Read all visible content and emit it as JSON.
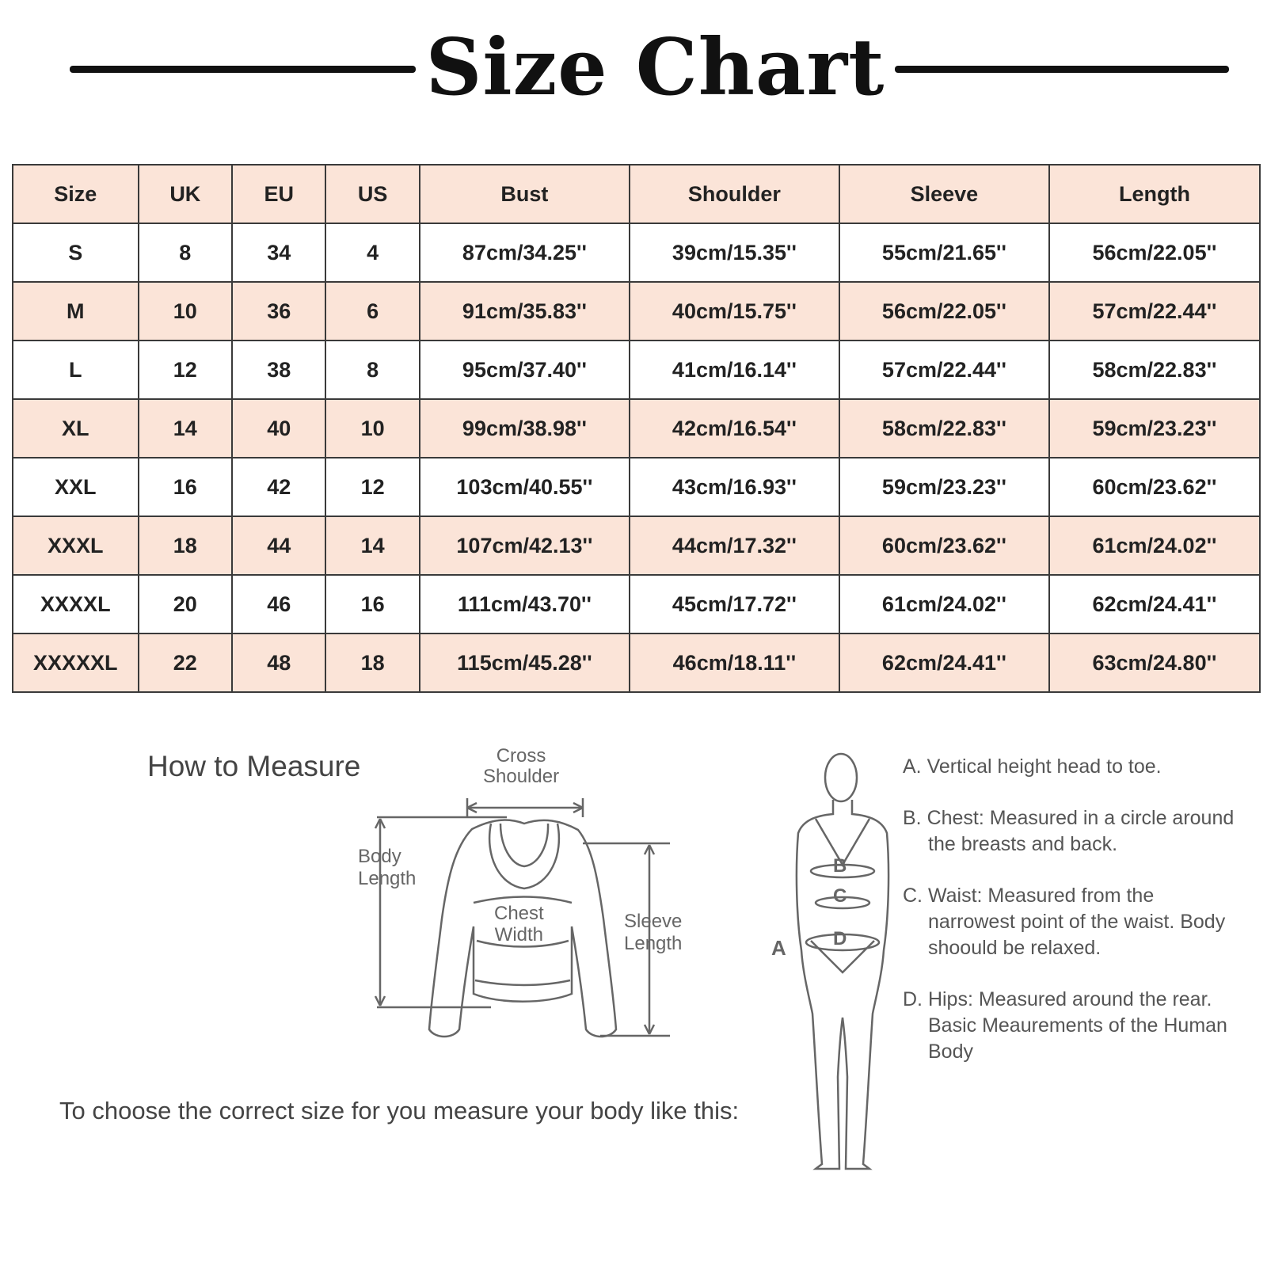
{
  "title": "Size Chart",
  "table": {
    "headers": [
      "Size",
      "UK",
      "EU",
      "US",
      "Bust",
      "Shoulder",
      "Sleeve",
      "Length"
    ],
    "rows": [
      [
        "S",
        "8",
        "34",
        "4",
        "87cm/34.25''",
        "39cm/15.35''",
        "55cm/21.65''",
        "56cm/22.05''"
      ],
      [
        "M",
        "10",
        "36",
        "6",
        "91cm/35.83''",
        "40cm/15.75''",
        "56cm/22.05''",
        "57cm/22.44''"
      ],
      [
        "L",
        "12",
        "38",
        "8",
        "95cm/37.40''",
        "41cm/16.14''",
        "57cm/22.44''",
        "58cm/22.83''"
      ],
      [
        "XL",
        "14",
        "40",
        "10",
        "99cm/38.98''",
        "42cm/16.54''",
        "58cm/22.83''",
        "59cm/23.23''"
      ],
      [
        "XXL",
        "16",
        "42",
        "12",
        "103cm/40.55''",
        "43cm/16.93''",
        "59cm/23.23''",
        "60cm/23.62''"
      ],
      [
        "XXXL",
        "18",
        "44",
        "14",
        "107cm/42.13''",
        "44cm/17.32''",
        "60cm/23.62''",
        "61cm/24.02''"
      ],
      [
        "XXXXL",
        "20",
        "46",
        "16",
        "111cm/43.70''",
        "45cm/17.72''",
        "61cm/24.02''",
        "62cm/24.41''"
      ],
      [
        "XXXXXL",
        "22",
        "48",
        "18",
        "115cm/45.28''",
        "46cm/18.11''",
        "62cm/24.41''",
        "63cm/24.80''"
      ]
    ]
  },
  "measure": {
    "heading": "How to Measure",
    "instruction": "To choose the correct size for you measure your body like this:",
    "garment_labels": {
      "cross_1": "Cross",
      "cross_2": "Shoulder",
      "body_1": "Body",
      "body_2": "Length",
      "chest_1": "Chest",
      "chest_2": "Width",
      "sleeve_1": "Sleeve",
      "sleeve_2": "Length"
    },
    "body_labels": {
      "a": "A",
      "b": "B",
      "c": "C",
      "d": "D"
    },
    "notes": [
      "A. Vertical height head to toe.",
      "B. Chest: Measured in a circle around the breasts and back.",
      "C. Waist: Measured from the narrowest point of the waist. Body shoould be relaxed.",
      "D. Hips: Measured around the rear. Basic Meaurements of the Human Body"
    ]
  },
  "colors": {
    "shade_row": "#fbe4d8",
    "border": "#3a3a3a",
    "diagram_line": "#666666"
  }
}
